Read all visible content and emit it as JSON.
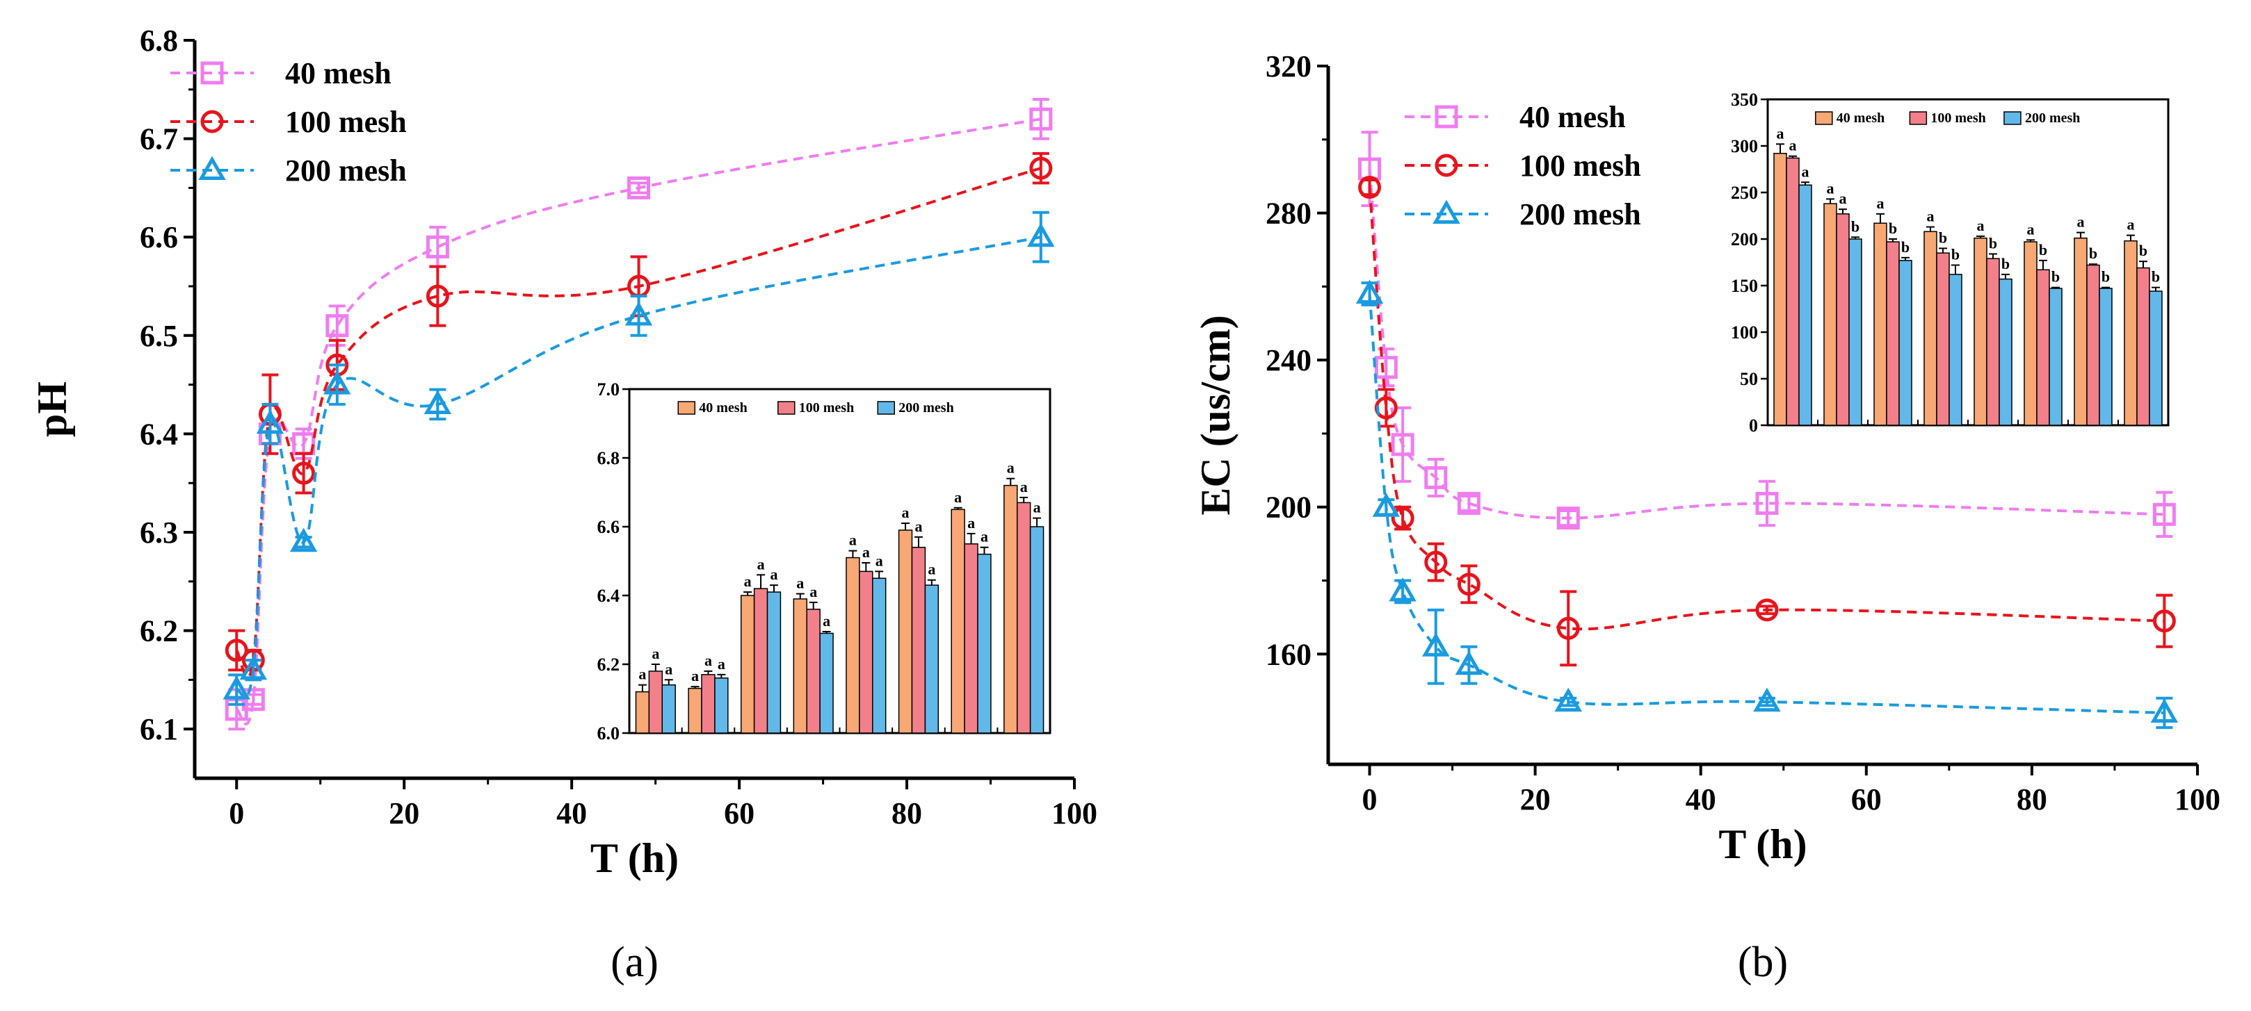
{
  "chart_data": [
    {
      "type": "line",
      "panel_label": "(a)",
      "xlabel": "T (h)",
      "ylabel": "pH",
      "xlim": [
        -5,
        100
      ],
      "ylim": [
        6.05,
        6.8
      ],
      "xticks": [
        0,
        20,
        40,
        60,
        80,
        100
      ],
      "yticks": [
        6.1,
        6.2,
        6.3,
        6.4,
        6.5,
        6.6,
        6.7,
        6.8
      ],
      "legend_position": "top-left",
      "x": [
        0,
        2,
        4,
        8,
        12,
        24,
        48,
        96
      ],
      "series": [
        {
          "name": "40 mesh",
          "color": "#f07cf0",
          "marker": "square",
          "values": [
            6.12,
            6.13,
            6.4,
            6.39,
            6.51,
            6.59,
            6.65,
            6.72
          ],
          "errors": [
            0.02,
            0.005,
            0.01,
            0.015,
            0.02,
            0.02,
            0.005,
            0.02
          ]
        },
        {
          "name": "100 mesh",
          "color": "#e8141c",
          "marker": "circle",
          "values": [
            6.18,
            6.17,
            6.42,
            6.36,
            6.47,
            6.54,
            6.55,
            6.67
          ],
          "errors": [
            0.02,
            0.01,
            0.04,
            0.02,
            0.025,
            0.03,
            0.03,
            0.015
          ]
        },
        {
          "name": "200 mesh",
          "color": "#1a9be0",
          "marker": "triangle",
          "values": [
            6.14,
            6.16,
            6.41,
            6.29,
            6.45,
            6.43,
            6.52,
            6.6
          ],
          "errors": [
            0.015,
            0.01,
            0.02,
            0.005,
            0.02,
            0.015,
            0.02,
            0.025
          ]
        }
      ],
      "inset": {
        "type": "bar",
        "ylim": [
          6.0,
          7.0
        ],
        "yticks": [
          "6.0",
          "6.2",
          "6.4",
          "6.6",
          "6.8",
          "7.0"
        ],
        "legend": [
          "40 mesh",
          "100 mesh",
          "200 mesh"
        ],
        "legend_position": "top",
        "colors": [
          "#f7a874",
          "#f2808a",
          "#62b8e8"
        ],
        "groups": [
          {
            "values": [
              6.12,
              6.18,
              6.14
            ],
            "errors": [
              0.02,
              0.02,
              0.015
            ],
            "letters": [
              "a",
              "a",
              "a"
            ]
          },
          {
            "values": [
              6.13,
              6.17,
              6.16
            ],
            "errors": [
              0.005,
              0.01,
              0.01
            ],
            "letters": [
              "a",
              "a",
              "a"
            ]
          },
          {
            "values": [
              6.4,
              6.42,
              6.41
            ],
            "errors": [
              0.01,
              0.04,
              0.02
            ],
            "letters": [
              "a",
              "a",
              "a"
            ]
          },
          {
            "values": [
              6.39,
              6.36,
              6.29
            ],
            "errors": [
              0.015,
              0.02,
              0.005
            ],
            "letters": [
              "a",
              "a",
              "a"
            ]
          },
          {
            "values": [
              6.51,
              6.47,
              6.45
            ],
            "errors": [
              0.02,
              0.025,
              0.02
            ],
            "letters": [
              "a",
              "a",
              "a"
            ]
          },
          {
            "values": [
              6.59,
              6.54,
              6.43
            ],
            "errors": [
              0.02,
              0.03,
              0.015
            ],
            "letters": [
              "a",
              "a",
              "a"
            ]
          },
          {
            "values": [
              6.65,
              6.55,
              6.52
            ],
            "errors": [
              0.005,
              0.03,
              0.02
            ],
            "letters": [
              "a",
              "a",
              "a"
            ]
          },
          {
            "values": [
              6.72,
              6.67,
              6.6
            ],
            "errors": [
              0.02,
              0.015,
              0.025
            ],
            "letters": [
              "a",
              "a",
              "a"
            ]
          }
        ]
      }
    },
    {
      "type": "line",
      "panel_label": "(b)",
      "xlabel": "T (h)",
      "ylabel": "EC (us/cm)",
      "xlim": [
        -5,
        100
      ],
      "ylim": [
        130,
        320
      ],
      "xticks": [
        0,
        20,
        40,
        60,
        80,
        100
      ],
      "yticks": [
        160,
        200,
        240,
        280,
        320
      ],
      "legend_position": "top-left",
      "x": [
        0,
        2,
        4,
        8,
        12,
        24,
        48,
        96
      ],
      "series": [
        {
          "name": "40 mesh",
          "color": "#f07cf0",
          "marker": "square",
          "values": [
            292,
            238,
            217,
            208,
            201,
            197,
            201,
            198
          ],
          "errors": [
            10,
            5,
            10,
            5,
            2,
            2,
            6,
            6
          ]
        },
        {
          "name": "100 mesh",
          "color": "#e8141c",
          "marker": "circle",
          "values": [
            287,
            227,
            197,
            185,
            179,
            167,
            172,
            169
          ],
          "errors": [
            2,
            5,
            3,
            5,
            5,
            10,
            1,
            7
          ]
        },
        {
          "name": "200 mesh",
          "color": "#1a9be0",
          "marker": "triangle",
          "values": [
            258,
            200,
            177,
            162,
            157,
            147,
            147,
            144
          ],
          "errors": [
            3,
            2,
            3,
            10,
            5,
            1,
            1,
            4
          ]
        }
      ],
      "inset": {
        "type": "bar",
        "ylim": [
          0,
          350
        ],
        "yticks": [
          "0",
          "50",
          "100",
          "150",
          "200",
          "250",
          "300",
          "350"
        ],
        "legend": [
          "40 mesh",
          "100 mesh",
          "200 mesh"
        ],
        "legend_position": "top",
        "colors": [
          "#f7a874",
          "#f2808a",
          "#62b8e8"
        ],
        "groups": [
          {
            "values": [
              292,
              287,
              258
            ],
            "errors": [
              10,
              2,
              3
            ],
            "letters": [
              "a",
              "a",
              "a"
            ]
          },
          {
            "values": [
              238,
              227,
              200
            ],
            "errors": [
              5,
              5,
              2
            ],
            "letters": [
              "a",
              "a",
              "b"
            ]
          },
          {
            "values": [
              217,
              197,
              177
            ],
            "errors": [
              10,
              3,
              3
            ],
            "letters": [
              "a",
              "b",
              "b"
            ]
          },
          {
            "values": [
              208,
              185,
              162
            ],
            "errors": [
              5,
              5,
              10
            ],
            "letters": [
              "a",
              "b",
              "b"
            ]
          },
          {
            "values": [
              201,
              179,
              157
            ],
            "errors": [
              2,
              5,
              5
            ],
            "letters": [
              "a",
              "b",
              "b"
            ]
          },
          {
            "values": [
              197,
              167,
              147
            ],
            "errors": [
              2,
              10,
              1
            ],
            "letters": [
              "a",
              "b",
              "b"
            ]
          },
          {
            "values": [
              201,
              172,
              147
            ],
            "errors": [
              6,
              1,
              1
            ],
            "letters": [
              "a",
              "b",
              "b"
            ]
          },
          {
            "values": [
              198,
              169,
              144
            ],
            "errors": [
              6,
              7,
              4
            ],
            "letters": [
              "a",
              "b",
              "b"
            ]
          }
        ]
      }
    }
  ]
}
